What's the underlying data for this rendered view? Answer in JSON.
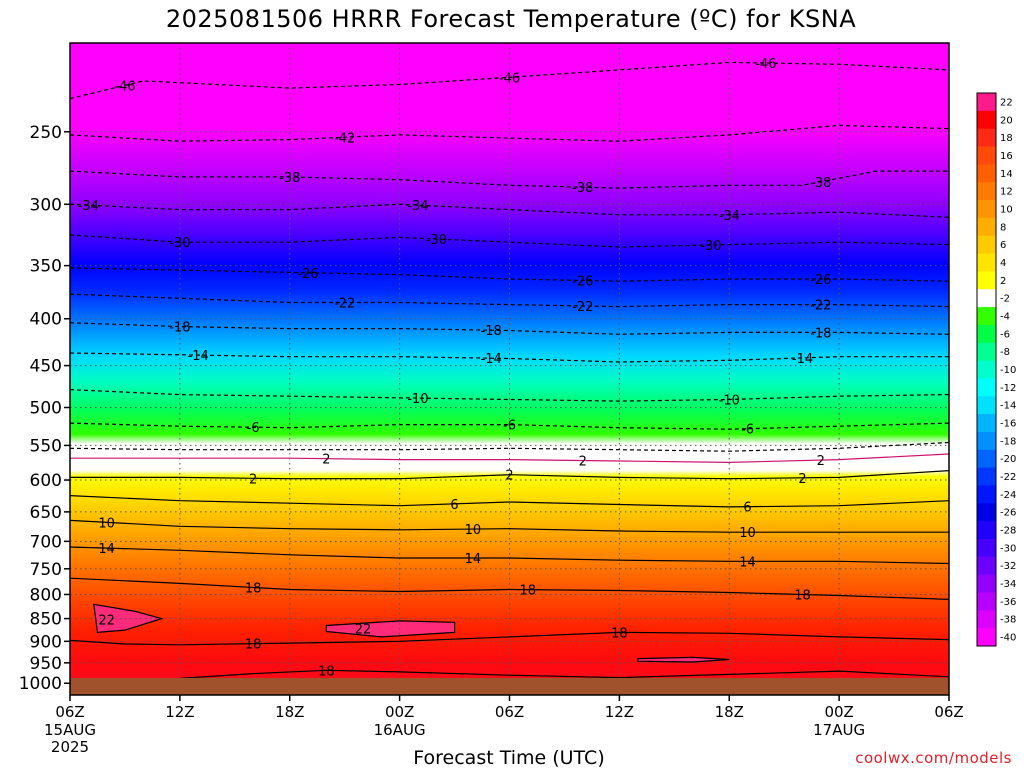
{
  "chart_data": {
    "type": "heatmap",
    "title": "2025081506 HRRR Forecast Temperature (ºC) for KSNA",
    "xlabel": "Forecast Time (UTC)",
    "ylabel": "",
    "credit": "coolwx.com/models",
    "x_ticks": [
      {
        "hour": 0,
        "label": "06Z",
        "sub": [
          "15AUG",
          "2025"
        ]
      },
      {
        "hour": 6,
        "label": "12Z",
        "sub": []
      },
      {
        "hour": 12,
        "label": "18Z",
        "sub": []
      },
      {
        "hour": 18,
        "label": "00Z",
        "sub": [
          "16AUG"
        ]
      },
      {
        "hour": 24,
        "label": "06Z",
        "sub": []
      },
      {
        "hour": 30,
        "label": "12Z",
        "sub": []
      },
      {
        "hour": 36,
        "label": "18Z",
        "sub": []
      },
      {
        "hour": 42,
        "label": "00Z",
        "sub": [
          "17AUG"
        ]
      },
      {
        "hour": 48,
        "label": "06Z",
        "sub": []
      }
    ],
    "xlim_hours": [
      0,
      48
    ],
    "y_ticks": [
      250,
      300,
      350,
      400,
      450,
      500,
      550,
      600,
      650,
      700,
      750,
      800,
      850,
      900,
      950,
      1000
    ],
    "ylim_hPa": [
      200,
      1030
    ],
    "y_scale": "log",
    "y_inverted": true,
    "surface_pressure_hPa": 1010,
    "grid": true,
    "colorbar": {
      "labels": [
        22,
        20,
        18,
        16,
        14,
        12,
        10,
        8,
        6,
        4,
        2,
        -2,
        -4,
        -6,
        -8,
        -10,
        -12,
        -14,
        -16,
        -18,
        -20,
        -22,
        -24,
        -26,
        -28,
        -30,
        -32,
        -34,
        -36,
        -38,
        -40
      ],
      "colors": [
        "#ff1a8c",
        "#ff0000",
        "#ff2a16",
        "#ff4a0a",
        "#ff5f00",
        "#ff7a00",
        "#ff9400",
        "#ffae00",
        "#ffcb00",
        "#ffe400",
        "#ffff00",
        "#ffffff",
        "#33ff00",
        "#00ff44",
        "#00ff90",
        "#00ffcc",
        "#00ffff",
        "#00e0ff",
        "#00b4ff",
        "#0090ff",
        "#0064ff",
        "#0038ff",
        "#0016ff",
        "#0000e8",
        "#2000ff",
        "#4600ff",
        "#6c00ff",
        "#9400ff",
        "#b800ff",
        "#dc00ff",
        "#ff00ff"
      ]
    },
    "contours": [
      {
        "value": -46,
        "style": "dashed",
        "points": [
          [
            0,
            230
          ],
          [
            4,
            220
          ],
          [
            8,
            222
          ],
          [
            12,
            224
          ],
          [
            18,
            222
          ],
          [
            24,
            218
          ],
          [
            30,
            214
          ],
          [
            36,
            210
          ],
          [
            42,
            211
          ],
          [
            48,
            214
          ]
        ],
        "labels": [
          [
            3,
            "-46"
          ],
          [
            24,
            "-46"
          ],
          [
            38,
            "-46"
          ]
        ]
      },
      {
        "value": -42,
        "style": "dashed",
        "points": [
          [
            0,
            252
          ],
          [
            6,
            256
          ],
          [
            12,
            255
          ],
          [
            18,
            252
          ],
          [
            24,
            254
          ],
          [
            30,
            256
          ],
          [
            36,
            252
          ],
          [
            42,
            246
          ],
          [
            48,
            248
          ]
        ],
        "labels": [
          [
            15,
            "-42"
          ]
        ]
      },
      {
        "value": -38,
        "style": "dashed",
        "points": [
          [
            0,
            276
          ],
          [
            6,
            280
          ],
          [
            12,
            280
          ],
          [
            18,
            282
          ],
          [
            24,
            286
          ],
          [
            30,
            288
          ],
          [
            36,
            286
          ],
          [
            40,
            286
          ],
          [
            44,
            276
          ],
          [
            48,
            276
          ]
        ],
        "labels": [
          [
            12,
            "-38"
          ],
          [
            28,
            "-38"
          ],
          [
            41,
            "-38"
          ]
        ]
      },
      {
        "value": -34,
        "style": "dashed",
        "points": [
          [
            0,
            300
          ],
          [
            6,
            304
          ],
          [
            12,
            304
          ],
          [
            18,
            300
          ],
          [
            24,
            304
          ],
          [
            30,
            308
          ],
          [
            36,
            308
          ],
          [
            42,
            306
          ],
          [
            48,
            310
          ]
        ],
        "labels": [
          [
            1,
            "-34"
          ],
          [
            19,
            "-34"
          ],
          [
            36,
            "-34"
          ]
        ]
      },
      {
        "value": -30,
        "style": "dashed",
        "points": [
          [
            0,
            324
          ],
          [
            6,
            330
          ],
          [
            12,
            330
          ],
          [
            18,
            326
          ],
          [
            24,
            330
          ],
          [
            30,
            334
          ],
          [
            36,
            332
          ],
          [
            42,
            330
          ],
          [
            48,
            332
          ]
        ],
        "labels": [
          [
            6,
            "-30"
          ],
          [
            20,
            "-30"
          ],
          [
            35,
            "-30"
          ]
        ]
      },
      {
        "value": -26,
        "style": "dashed",
        "points": [
          [
            0,
            352
          ],
          [
            6,
            354
          ],
          [
            12,
            356
          ],
          [
            18,
            358
          ],
          [
            24,
            362
          ],
          [
            30,
            364
          ],
          [
            36,
            362
          ],
          [
            42,
            362
          ],
          [
            48,
            364
          ]
        ],
        "labels": [
          [
            13,
            "-26"
          ],
          [
            28,
            "-26"
          ],
          [
            41,
            "-26"
          ]
        ]
      },
      {
        "value": -22,
        "style": "dashed",
        "points": [
          [
            0,
            376
          ],
          [
            6,
            380
          ],
          [
            12,
            384
          ],
          [
            18,
            384
          ],
          [
            24,
            386
          ],
          [
            30,
            388
          ],
          [
            36,
            386
          ],
          [
            42,
            386
          ],
          [
            48,
            388
          ]
        ],
        "labels": [
          [
            15,
            "-22"
          ],
          [
            28,
            "-22"
          ],
          [
            41,
            "-22"
          ]
        ]
      },
      {
        "value": -18,
        "style": "dashed",
        "points": [
          [
            0,
            404
          ],
          [
            6,
            408
          ],
          [
            12,
            410
          ],
          [
            18,
            410
          ],
          [
            24,
            412
          ],
          [
            30,
            416
          ],
          [
            36,
            414
          ],
          [
            42,
            414
          ],
          [
            48,
            416
          ]
        ],
        "labels": [
          [
            6,
            "-18"
          ],
          [
            23,
            "-18"
          ],
          [
            41,
            "-18"
          ]
        ]
      },
      {
        "value": -14,
        "style": "dashed",
        "points": [
          [
            0,
            436
          ],
          [
            6,
            438
          ],
          [
            12,
            440
          ],
          [
            18,
            440
          ],
          [
            24,
            442
          ],
          [
            30,
            446
          ],
          [
            36,
            444
          ],
          [
            42,
            440
          ],
          [
            48,
            440
          ]
        ],
        "labels": [
          [
            7,
            "-14"
          ],
          [
            23,
            "-14"
          ],
          [
            40,
            "-14"
          ]
        ]
      },
      {
        "value": -10,
        "style": "dashed",
        "points": [
          [
            0,
            478
          ],
          [
            6,
            484
          ],
          [
            12,
            486
          ],
          [
            18,
            488
          ],
          [
            24,
            490
          ],
          [
            30,
            492
          ],
          [
            36,
            490
          ],
          [
            42,
            486
          ],
          [
            48,
            484
          ]
        ],
        "labels": [
          [
            19,
            "-10"
          ],
          [
            36,
            "-10"
          ]
        ]
      },
      {
        "value": -6,
        "style": "dashed",
        "points": [
          [
            0,
            520
          ],
          [
            6,
            524
          ],
          [
            12,
            526
          ],
          [
            18,
            522
          ],
          [
            24,
            522
          ],
          [
            30,
            526
          ],
          [
            36,
            528
          ],
          [
            42,
            524
          ],
          [
            48,
            520
          ]
        ],
        "labels": [
          [
            10,
            "-6"
          ],
          [
            24,
            "-6"
          ],
          [
            37,
            "-6"
          ]
        ]
      },
      {
        "value": -2,
        "style": "dashed",
        "points": [
          [
            0,
            554
          ],
          [
            6,
            556
          ],
          [
            12,
            556
          ],
          [
            18,
            556
          ],
          [
            24,
            554
          ],
          [
            30,
            556
          ],
          [
            36,
            558
          ],
          [
            42,
            554
          ],
          [
            48,
            546
          ]
        ],
        "labels": []
      },
      {
        "value": 2,
        "style": "solid",
        "color": "#d0106e",
        "points": [
          [
            0,
            568
          ],
          [
            6,
            568
          ],
          [
            12,
            568
          ],
          [
            18,
            570
          ],
          [
            24,
            570
          ],
          [
            30,
            572
          ],
          [
            36,
            574
          ],
          [
            42,
            570
          ],
          [
            48,
            562
          ]
        ],
        "labels": [
          [
            14,
            "2"
          ],
          [
            28,
            "2"
          ],
          [
            41,
            "2"
          ]
        ]
      },
      {
        "value": 2,
        "style": "solid",
        "points": [
          [
            0,
            596
          ],
          [
            6,
            596
          ],
          [
            12,
            598
          ],
          [
            18,
            598
          ],
          [
            24,
            592
          ],
          [
            30,
            596
          ],
          [
            36,
            598
          ],
          [
            42,
            596
          ],
          [
            48,
            586
          ]
        ],
        "labels": [
          [
            10,
            "2"
          ],
          [
            24,
            "2"
          ],
          [
            40,
            "2"
          ]
        ]
      },
      {
        "value": 6,
        "style": "solid",
        "points": [
          [
            0,
            624
          ],
          [
            6,
            632
          ],
          [
            12,
            636
          ],
          [
            18,
            640
          ],
          [
            24,
            634
          ],
          [
            30,
            638
          ],
          [
            36,
            642
          ],
          [
            42,
            640
          ],
          [
            48,
            632
          ]
        ],
        "labels": [
          [
            21,
            "6"
          ],
          [
            37,
            "6"
          ]
        ]
      },
      {
        "value": 10,
        "style": "solid",
        "points": [
          [
            0,
            664
          ],
          [
            6,
            674
          ],
          [
            12,
            678
          ],
          [
            18,
            680
          ],
          [
            24,
            678
          ],
          [
            30,
            682
          ],
          [
            36,
            684
          ],
          [
            42,
            684
          ],
          [
            48,
            684
          ]
        ],
        "labels": [
          [
            2,
            "10"
          ],
          [
            22,
            "10"
          ],
          [
            37,
            "10"
          ]
        ]
      },
      {
        "value": 14,
        "style": "solid",
        "points": [
          [
            0,
            710
          ],
          [
            6,
            716
          ],
          [
            12,
            724
          ],
          [
            18,
            730
          ],
          [
            24,
            730
          ],
          [
            30,
            734
          ],
          [
            36,
            736
          ],
          [
            42,
            736
          ],
          [
            48,
            740
          ]
        ],
        "labels": [
          [
            2,
            "14"
          ],
          [
            22,
            "14"
          ],
          [
            37,
            "14"
          ]
        ]
      },
      {
        "value": 18,
        "style": "solid",
        "points": [
          [
            0,
            768
          ],
          [
            6,
            778
          ],
          [
            12,
            790
          ],
          [
            18,
            794
          ],
          [
            24,
            790
          ],
          [
            30,
            792
          ],
          [
            36,
            796
          ],
          [
            42,
            802
          ],
          [
            48,
            810
          ]
        ],
        "labels": [
          [
            10,
            "18"
          ],
          [
            25,
            "18"
          ],
          [
            40,
            "18"
          ]
        ]
      },
      {
        "value": 18,
        "style": "solid",
        "points": [
          [
            0,
            898
          ],
          [
            3,
            906
          ],
          [
            6,
            908
          ],
          [
            12,
            904
          ],
          [
            18,
            900
          ],
          [
            24,
            890
          ],
          [
            30,
            880
          ],
          [
            36,
            882
          ],
          [
            42,
            890
          ],
          [
            48,
            896
          ]
        ],
        "labels": [
          [
            10,
            "18"
          ],
          [
            30,
            "18"
          ]
        ]
      },
      {
        "value": 18,
        "style": "solid",
        "points": [
          [
            6,
            988
          ],
          [
            10,
            976
          ],
          [
            14,
            968
          ],
          [
            18,
            972
          ],
          [
            24,
            980
          ],
          [
            30,
            986
          ],
          [
            36,
            978
          ],
          [
            42,
            970
          ],
          [
            48,
            984
          ]
        ],
        "labels": [
          [
            14,
            "18"
          ]
        ]
      },
      {
        "value": 22,
        "style": "solid",
        "closed": true,
        "points": [
          [
            1.3,
            820
          ],
          [
            3.6,
            835
          ],
          [
            5,
            850
          ],
          [
            3,
            875
          ],
          [
            1.5,
            880
          ]
        ],
        "labels": [
          [
            2,
            "22"
          ]
        ]
      },
      {
        "value": 22,
        "style": "solid",
        "closed": true,
        "points": [
          [
            14,
            865
          ],
          [
            18,
            855
          ],
          [
            21,
            858
          ],
          [
            21,
            880
          ],
          [
            17,
            890
          ],
          [
            14,
            878
          ]
        ],
        "labels": [
          [
            16,
            "22"
          ]
        ]
      },
      {
        "value": 22,
        "style": "solid",
        "closed": true,
        "points": [
          [
            31,
            940
          ],
          [
            34,
            937
          ],
          [
            36,
            942
          ],
          [
            34,
            948
          ],
          [
            31,
            946
          ]
        ],
        "labels": []
      }
    ]
  }
}
